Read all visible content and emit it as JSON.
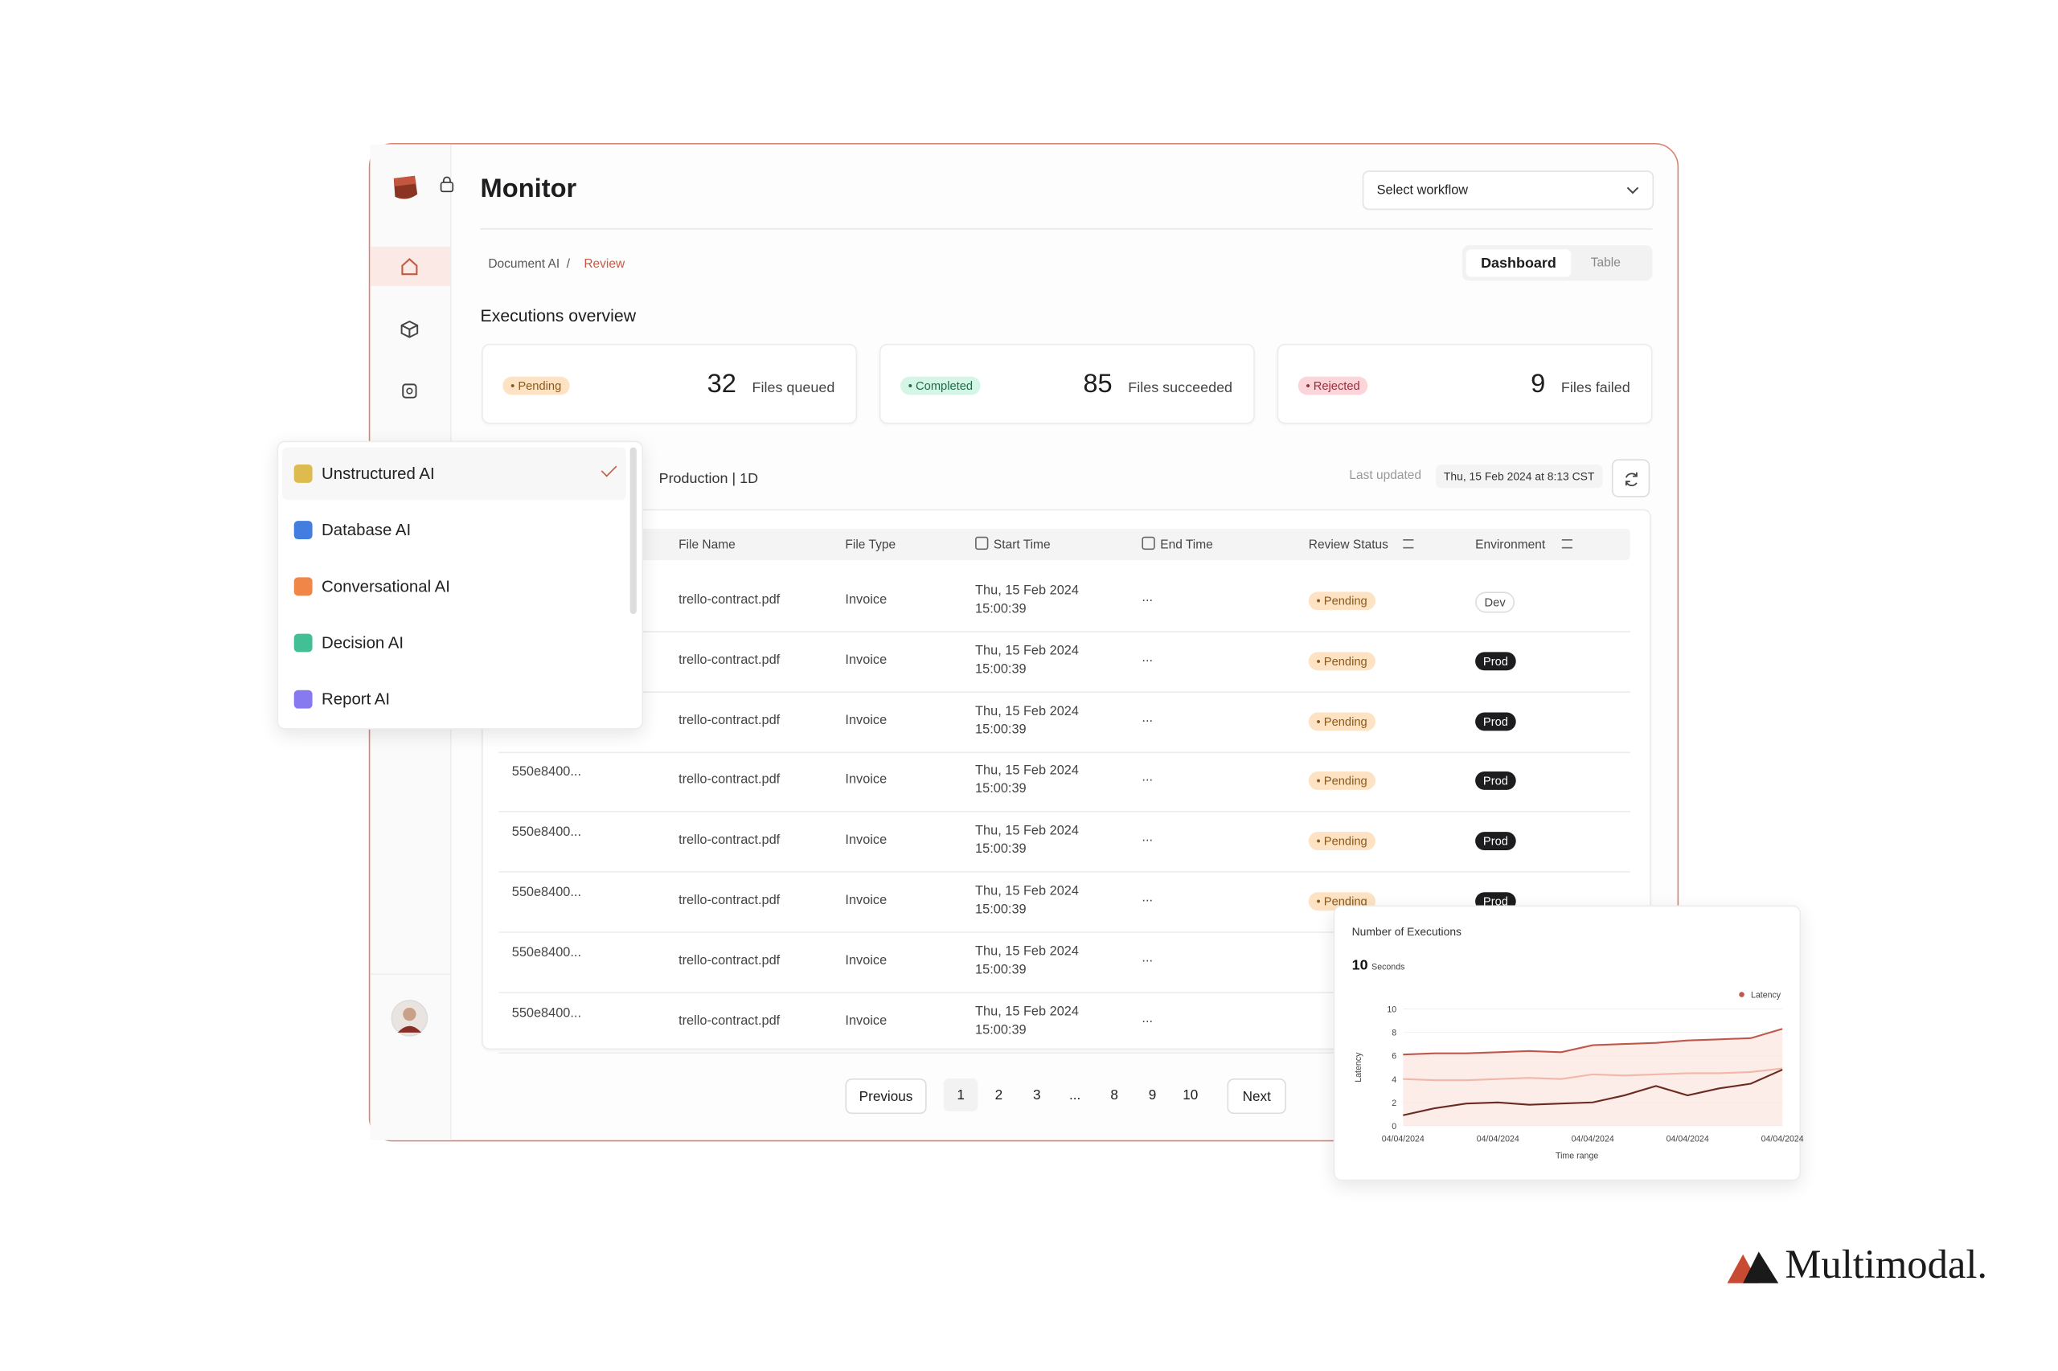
{
  "brand": "Multimodal.",
  "header": {
    "title": "Monitor",
    "workflow_select": "Select workflow"
  },
  "breadcrumb": {
    "items": [
      "Document AI",
      "Review"
    ],
    "separator": "/"
  },
  "view_tabs": [
    "Dashboard",
    "Table"
  ],
  "section_title": "Executions overview",
  "stats": [
    {
      "badge": "Pending",
      "count": 32,
      "label": "Files queued"
    },
    {
      "badge": "Completed",
      "count": 85,
      "label": "Files succeeded"
    },
    {
      "badge": "Rejected",
      "count": 9,
      "label": "Files failed"
    }
  ],
  "toolbar": {
    "environment": "Production | 1D",
    "last_updated_label": "Last updated",
    "last_updated": "Thu, 15 Feb 2024 at 8:13 CST"
  },
  "table": {
    "columns": [
      "File Name",
      "File Type",
      "Start Time",
      "End Time",
      "Review Status",
      "Environment"
    ],
    "rows": [
      {
        "file": "trello-contract.pdf",
        "type": "Invoice",
        "start_date": "Thu, 15 Feb 2024",
        "start_time": "15:00:39",
        "end": "...",
        "status": "Pending",
        "env": "Dev"
      },
      {
        "file": "trello-contract.pdf",
        "type": "Invoice",
        "start_date": "Thu, 15 Feb 2024",
        "start_time": "15:00:39",
        "end": "...",
        "status": "Pending",
        "env": "Prod"
      },
      {
        "file": "trello-contract.pdf",
        "type": "Invoice",
        "start_date": "Thu, 15 Feb 2024",
        "start_time": "15:00:39",
        "end": "...",
        "status": "Pending",
        "env": "Prod"
      },
      {
        "id": "550e8400...",
        "file": "trello-contract.pdf",
        "type": "Invoice",
        "start_date": "Thu, 15 Feb 2024",
        "start_time": "15:00:39",
        "end": "...",
        "status": "Pending",
        "env": "Prod"
      },
      {
        "id": "550e8400...",
        "file": "trello-contract.pdf",
        "type": "Invoice",
        "start_date": "Thu, 15 Feb 2024",
        "start_time": "15:00:39",
        "end": "...",
        "status": "Pending",
        "env": "Prod"
      },
      {
        "id": "550e8400...",
        "file": "trello-contract.pdf",
        "type": "Invoice",
        "start_date": "Thu, 15 Feb 2024",
        "start_time": "15:00:39",
        "end": "...",
        "status": "Pending",
        "env": "Prod"
      },
      {
        "id": "550e8400...",
        "file": "trello-contract.pdf",
        "type": "Invoice",
        "start_date": "Thu, 15 Feb 2024",
        "start_time": "15:00:39",
        "end": "..."
      },
      {
        "id": "550e8400...",
        "file": "trello-contract.pdf",
        "type": "Invoice",
        "start_date": "Thu, 15 Feb 2024",
        "start_time": "15:00:39",
        "end": "..."
      }
    ]
  },
  "pagination": {
    "previous": "Previous",
    "pages": [
      1,
      2,
      3,
      "...",
      8,
      9,
      10
    ],
    "next": "Next"
  },
  "dropdown": {
    "items": [
      {
        "label": "Unstructured AI",
        "selected": true
      },
      {
        "label": "Database AI"
      },
      {
        "label": "Conversational AI"
      },
      {
        "label": "Decision AI"
      },
      {
        "label": "Report AI"
      }
    ]
  },
  "latency_chart": {
    "type": "line",
    "title": "Number of Executions",
    "value": 10,
    "unit": "Seconds",
    "ylabel": "Latency",
    "xlabel": "Time range",
    "x": [
      0,
      1,
      2,
      3,
      4,
      5,
      6,
      7,
      8,
      9,
      10,
      11,
      12
    ],
    "xlim": [
      0,
      12
    ],
    "xticks": [
      {
        "value": 0,
        "label": "04/04/2024"
      },
      {
        "value": 3,
        "label": "04/04/2024"
      },
      {
        "value": 6,
        "label": "04/04/2024"
      },
      {
        "value": 9,
        "label": "04/04/2024"
      },
      {
        "value": 12,
        "label": "04/04/2024"
      }
    ],
    "ylim": [
      0,
      10
    ],
    "yticks": [
      0,
      2,
      4,
      6,
      8,
      10
    ],
    "legend": "top-right",
    "series": [
      {
        "name": "Latency",
        "color": "#c0574b",
        "values": [
          6.1,
          6.2,
          6.2,
          6.3,
          6.4,
          6.3,
          6.9,
          7.0,
          7.1,
          7.3,
          7.4,
          7.5,
          8.3
        ]
      },
      {
        "color": "#f2b7a8",
        "values": [
          4.0,
          3.9,
          3.9,
          4.0,
          4.1,
          4.0,
          4.4,
          4.3,
          4.4,
          4.5,
          4.5,
          4.6,
          4.9
        ]
      },
      {
        "color": "#6b2a20",
        "values": [
          0.9,
          1.5,
          1.9,
          2.0,
          1.8,
          1.9,
          2.0,
          2.6,
          3.4,
          2.6,
          3.2,
          3.6,
          4.8
        ]
      }
    ]
  }
}
